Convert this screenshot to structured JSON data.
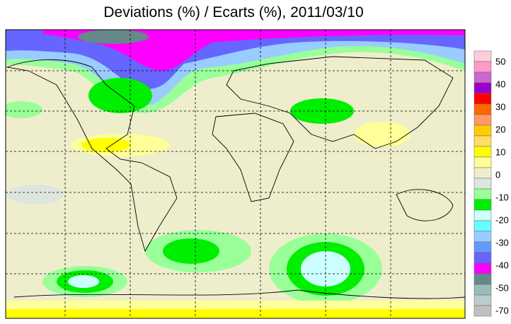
{
  "title": "Deviations (%) / Ecarts (%), 2011/03/10",
  "legend": {
    "colors": [
      "#ffccd9",
      "#ff99cc",
      "#cc66cc",
      "#9900cc",
      "#ff0000",
      "#ff6600",
      "#ff9966",
      "#ffcc00",
      "#ffdd66",
      "#ffff00",
      "#ffff99",
      "#eeeecc",
      "#dde6dd",
      "#99ff99",
      "#00ee00",
      "#ccffff",
      "#66ffff",
      "#99ccff",
      "#6699ff",
      "#6666ff",
      "#ff00ff",
      "#668888",
      "#99bbbb",
      "#bbcccc",
      "#c0c0c0"
    ],
    "labels": [
      50,
      40,
      30,
      20,
      10,
      0,
      -10,
      -20,
      -30,
      -40,
      -50,
      -70
    ]
  }
}
